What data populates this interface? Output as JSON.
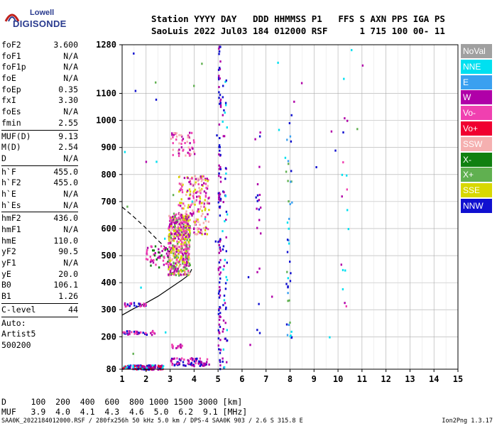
{
  "logo": {
    "line1": "Lowell",
    "line2": "DIGISONDE"
  },
  "header": {
    "labels": "Station YYYY DAY   DDD HHMMSS P1   FFS S AXN PPS IGA PS",
    "values": "SaoLuis 2022 Jul03 184 012000 RSF      1 715 100 00- 11"
  },
  "params": {
    "group1": [
      {
        "label": "foF2",
        "value": "3.600"
      },
      {
        "label": "foF1",
        "value": "N/A"
      },
      {
        "label": "foF1p",
        "value": "N/A"
      },
      {
        "label": "foE",
        "value": "N/A"
      },
      {
        "label": "foEp",
        "value": "0.35"
      },
      {
        "label": "fxI",
        "value": "3.30"
      },
      {
        "label": "foEs",
        "value": "N/A"
      },
      {
        "label": "fmin",
        "value": "2.55"
      }
    ],
    "group2": [
      {
        "label": "MUF(D)",
        "value": "9.13"
      },
      {
        "label": "M(D)",
        "value": "2.54"
      },
      {
        "label": "D",
        "value": "N/A"
      }
    ],
    "group3": [
      {
        "label": "h`F",
        "value": "455.0"
      },
      {
        "label": "h`F2",
        "value": "455.0"
      },
      {
        "label": "h`E",
        "value": "N/A"
      },
      {
        "label": "h`Es",
        "value": "N/A"
      }
    ],
    "group4": [
      {
        "label": "hmF2",
        "value": "436.0"
      },
      {
        "label": "hmF1",
        "value": "N/A"
      },
      {
        "label": "hmE",
        "value": "110.0"
      },
      {
        "label": "yF2",
        "value": "90.5"
      },
      {
        "label": "yF1",
        "value": "N/A"
      },
      {
        "label": "yE",
        "value": "20.0"
      },
      {
        "label": "B0",
        "value": "106.1"
      },
      {
        "label": "B1",
        "value": "1.26"
      }
    ],
    "group5": [
      {
        "label": "C-level",
        "value": "44"
      }
    ],
    "auto": [
      "Auto:",
      "Artist5",
      "500200"
    ]
  },
  "legend": [
    {
      "label": "NoVal",
      "color": "#a0a0a0"
    },
    {
      "label": "NNE",
      "color": "#00e0f0"
    },
    {
      "label": "E",
      "color": "#3aa0f0"
    },
    {
      "label": "W",
      "color": "#b000a8"
    },
    {
      "label": "Vo-",
      "color": "#f040b0"
    },
    {
      "label": "Vo+",
      "color": "#f00030"
    },
    {
      "label": "SSW",
      "color": "#f5b0b0"
    },
    {
      "label": "X-",
      "color": "#108010"
    },
    {
      "label": "X+",
      "color": "#60b050"
    },
    {
      "label": "SSE",
      "color": "#d8d800"
    },
    {
      "label": "NNW",
      "color": "#1010d0"
    }
  ],
  "bottom": {
    "d_line": "D     100  200  400  600  800 1000 1500 3000 [km]",
    "muf_line": "MUF   3.9  4.0  4.1  4.3  4.6  5.0  6.2  9.1 [MHz]"
  },
  "footer": {
    "text": "SAA0K_2022184012000.RSF / 280fx256h 50 kHz 5.0 km / DPS-4 SAA0K 903 / 2.6 S 315.8 E",
    "version": "Ion2Png 1.3.17"
  },
  "chart_data": {
    "type": "scatter",
    "xlim": [
      1,
      15
    ],
    "ylim": [
      80,
      1280
    ],
    "x_ticks": [
      1,
      2,
      3,
      4,
      5,
      6,
      7,
      8,
      9,
      10,
      11,
      12,
      13,
      14,
      15
    ],
    "x_tick_labels": [
      "1",
      "2",
      "3",
      "4",
      "5",
      "6",
      "7",
      "8",
      "9",
      "10",
      "11",
      "12",
      "13",
      "14",
      "15"
    ],
    "y_ticks": [
      80,
      200,
      300,
      400,
      500,
      600,
      700,
      800,
      900,
      1000,
      1100,
      1280
    ],
    "y_tick_labels": [
      "80",
      "200",
      "300",
      "400",
      "500",
      "600",
      "700",
      "800",
      "900",
      "1000",
      "1100",
      "1280"
    ],
    "grid": true,
    "traces": [
      {
        "name": "x-trace",
        "curve": "dashed",
        "color": "#000000",
        "points": [
          [
            1.0,
            680
          ],
          [
            1.4,
            650
          ],
          [
            1.9,
            610
          ],
          [
            2.4,
            565
          ],
          [
            2.8,
            530
          ],
          [
            3.2,
            495
          ],
          [
            3.4,
            480
          ]
        ]
      },
      {
        "name": "profile",
        "curve": "solid",
        "color": "#000000",
        "points": [
          [
            1.0,
            280
          ],
          [
            1.5,
            305
          ],
          [
            2.0,
            325
          ],
          [
            2.5,
            350
          ],
          [
            3.0,
            380
          ],
          [
            3.5,
            410
          ],
          [
            3.8,
            430
          ],
          [
            3.9,
            450
          ]
        ]
      }
    ],
    "echo_clusters": [
      {
        "x": [
          2.9,
          3.8
        ],
        "y": [
          430,
          660
        ],
        "colors": [
          "#b000a8",
          "#f040b0",
          "#f5b0b0",
          "#60b050",
          "#d8d800"
        ],
        "n": 520
      },
      {
        "x": [
          3.3,
          4.6
        ],
        "y": [
          580,
          800
        ],
        "colors": [
          "#b000a8",
          "#f040b0",
          "#f5b0b0",
          "#d8d800"
        ],
        "n": 220
      },
      {
        "x": [
          3.0,
          4.0
        ],
        "y": [
          870,
          960
        ],
        "colors": [
          "#b000a8",
          "#f040b0",
          "#f5b0b0"
        ],
        "n": 55
      },
      {
        "x": [
          1.9,
          2.9
        ],
        "y": [
          460,
          540
        ],
        "colors": [
          "#b000a8",
          "#f040b0",
          "#108010"
        ],
        "n": 60
      },
      {
        "x": [
          1.0,
          2.7
        ],
        "y": [
          82,
          98
        ],
        "colors": [
          "#1010d0",
          "#f00030",
          "#b000a8",
          "#00e0f0"
        ],
        "n": 130
      },
      {
        "x": [
          3.0,
          4.6
        ],
        "y": [
          95,
          125
        ],
        "colors": [
          "#b000a8",
          "#f040b0",
          "#1010d0"
        ],
        "n": 80
      },
      {
        "x": [
          1.0,
          2.4
        ],
        "y": [
          210,
          225
        ],
        "colors": [
          "#b000a8",
          "#1010d0",
          "#f040b0"
        ],
        "n": 40
      },
      {
        "x": [
          1.0,
          2.0
        ],
        "y": [
          315,
          330
        ],
        "colors": [
          "#b000a8",
          "#f040b0",
          "#1010d0"
        ],
        "n": 25
      },
      {
        "x": [
          3.0,
          3.5
        ],
        "y": [
          160,
          175
        ],
        "colors": [
          "#b000a8",
          "#f040b0"
        ],
        "n": 15
      },
      {
        "x": [
          4.98,
          5.08
        ],
        "y": [
          82,
          1280
        ],
        "colors": [
          "#1010d0",
          "#b000a8"
        ],
        "n": 110
      },
      {
        "x": [
          5.15,
          5.35
        ],
        "y": [
          82,
          1160
        ],
        "colors": [
          "#1010d0",
          "#b000a8",
          "#00e0f0"
        ],
        "n": 60
      },
      {
        "x": [
          6.55,
          6.75
        ],
        "y": [
          200,
          1000
        ],
        "colors": [
          "#1010d0",
          "#b000a8"
        ],
        "n": 20
      },
      {
        "x": [
          7.8,
          8.05
        ],
        "y": [
          180,
          1100
        ],
        "colors": [
          "#1010d0",
          "#00e0f0",
          "#60b050",
          "#3aa0f0"
        ],
        "n": 40
      },
      {
        "x": [
          10.1,
          10.4
        ],
        "y": [
          250,
          1270
        ],
        "colors": [
          "#b000a8",
          "#f040b0",
          "#00e0f0"
        ],
        "n": 16
      },
      {
        "x": [
          1.0,
          11.0
        ],
        "y": [
          120,
          1280
        ],
        "colors": [
          "#1010d0",
          "#00e0f0",
          "#60b050",
          "#b000a8"
        ],
        "n": 40
      }
    ]
  }
}
